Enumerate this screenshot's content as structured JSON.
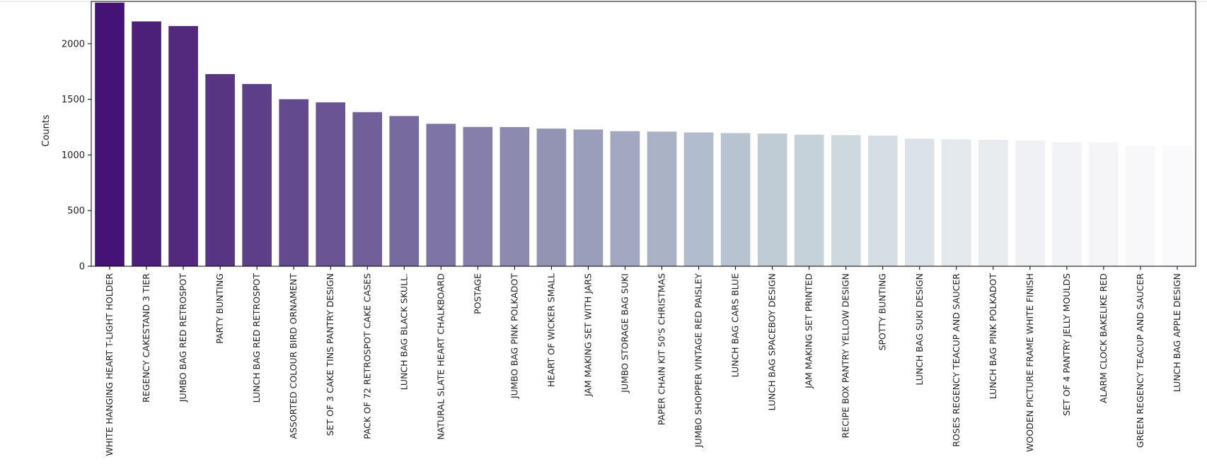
{
  "chart_data": {
    "type": "bar",
    "title": "",
    "xlabel": "",
    "ylabel": "Counts",
    "ylim": [
      0,
      2380
    ],
    "yticks": [
      0,
      500,
      1000,
      1500,
      2000
    ],
    "grid": false,
    "categories": [
      "WHITE HANGING HEART T-LIGHT HOLDER",
      "REGENCY CAKESTAND 3 TIER",
      "JUMBO BAG RED RETROSPOT",
      "PARTY BUNTING",
      "LUNCH BAG RED RETROSPOT",
      "ASSORTED COLOUR BIRD ORNAMENT",
      "SET OF 3 CAKE TINS PANTRY DESIGN",
      "PACK OF 72 RETROSPOT CAKE CASES",
      "LUNCH BAG  BLACK SKULL.",
      "NATURAL SLATE HEART CHALKBOARD",
      "POSTAGE",
      "JUMBO BAG PINK POLKADOT",
      "HEART OF WICKER SMALL",
      "JAM MAKING SET WITH JARS",
      "JUMBO STORAGE BAG SUKI",
      "PAPER CHAIN KIT 50'S CHRISTMAS",
      "JUMBO SHOPPER VINTAGE RED PAISLEY",
      "LUNCH BAG CARS BLUE",
      "LUNCH BAG SPACEBOY DESIGN",
      "JAM MAKING SET PRINTED",
      "RECIPE BOX PANTRY YELLOW DESIGN",
      "SPOTTY BUNTING",
      "LUNCH BAG SUKI DESIGN",
      "ROSES REGENCY TEACUP AND SAUCER",
      "LUNCH BAG PINK POLKADOT",
      "WOODEN PICTURE FRAME WHITE FINISH",
      "SET OF 4 PANTRY JELLY MOULDS",
      "ALARM CLOCK BAKELIKE RED",
      "GREEN REGENCY TEACUP AND SAUCER",
      "LUNCH BAG APPLE DESIGN"
    ],
    "values": [
      2369,
      2200,
      2159,
      1727,
      1638,
      1501,
      1473,
      1385,
      1350,
      1280,
      1252,
      1251,
      1237,
      1229,
      1214,
      1210,
      1202,
      1197,
      1192,
      1182,
      1178,
      1174,
      1146,
      1140,
      1136,
      1129,
      1113,
      1111,
      1084,
      1080
    ],
    "colors": [
      "#451373",
      "#4c2078",
      "#512a7d",
      "#573583",
      "#5d3f88",
      "#63498d",
      "#6a5493",
      "#715f99",
      "#776a9e",
      "#7e75a4",
      "#857faa",
      "#8c8aaf",
      "#9394b4",
      "#9a9eba",
      "#a2a8c0",
      "#a9b2c5",
      "#b0bbcb",
      "#b7c3d0",
      "#bfcbd5",
      "#c6d2da",
      "#cdd8df",
      "#d4dee3",
      "#dbe3e8",
      "#e2e8ec",
      "#e8ecef",
      "#eef0f3",
      "#f2f3f6",
      "#f5f5f8",
      "#f8f8fa",
      "#fafafc"
    ]
  }
}
